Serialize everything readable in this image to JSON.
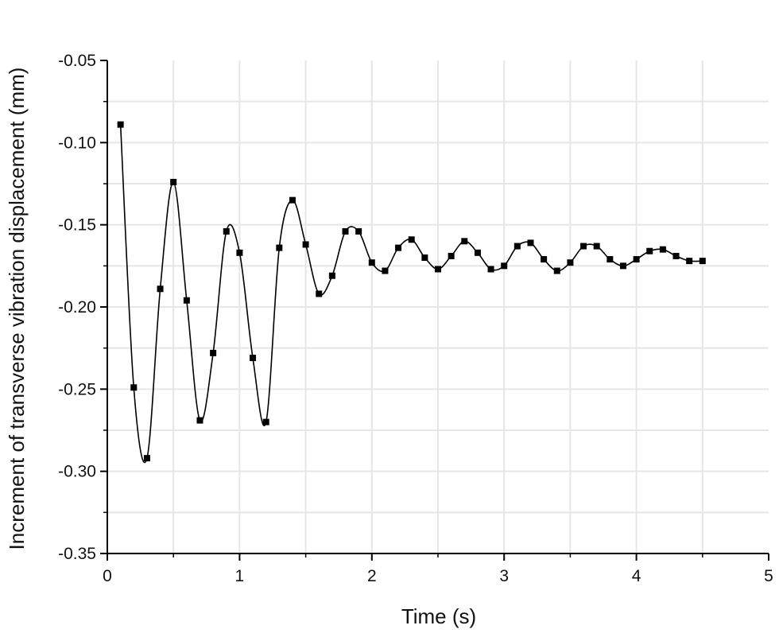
{
  "chart_data": {
    "type": "line",
    "title": "",
    "xlabel": "Time (s)",
    "ylabel": "Increment of transverse vibration displacement (mm)",
    "xlim": [
      0,
      5
    ],
    "ylim": [
      -0.35,
      -0.05
    ],
    "x_ticks": [
      0,
      1,
      2,
      3,
      4,
      5
    ],
    "x_tick_labels": [
      "0",
      "1",
      "2",
      "3",
      "4",
      "5"
    ],
    "y_ticks": [
      -0.35,
      -0.3,
      -0.25,
      -0.2,
      -0.15,
      -0.1,
      -0.05
    ],
    "y_tick_labels": [
      "-0.35",
      "-0.30",
      "-0.25",
      "-0.20",
      "-0.15",
      "-0.10",
      "-0.05"
    ],
    "grid": true,
    "legend": "none",
    "series": [
      {
        "marker": "square",
        "line": "smooth",
        "color": "#000000",
        "x": [
          0.1,
          0.2,
          0.3,
          0.4,
          0.5,
          0.6,
          0.7,
          0.8,
          0.9,
          1.0,
          1.1,
          1.2,
          1.3,
          1.4,
          1.5,
          1.6,
          1.7,
          1.8,
          1.9,
          2.0,
          2.1,
          2.2,
          2.3,
          2.4,
          2.5,
          2.6,
          2.7,
          2.8,
          2.9,
          3.0,
          3.1,
          3.2,
          3.3,
          3.4,
          3.5,
          3.6,
          3.7,
          3.8,
          3.9,
          4.0,
          4.1,
          4.2,
          4.3,
          4.4,
          4.5
        ],
        "y": [
          -0.089,
          -0.249,
          -0.292,
          -0.189,
          -0.124,
          -0.196,
          -0.269,
          -0.228,
          -0.154,
          -0.167,
          -0.231,
          -0.27,
          -0.164,
          -0.135,
          -0.162,
          -0.192,
          -0.181,
          -0.154,
          -0.154,
          -0.173,
          -0.178,
          -0.164,
          -0.159,
          -0.17,
          -0.177,
          -0.169,
          -0.16,
          -0.167,
          -0.177,
          -0.175,
          -0.163,
          -0.161,
          -0.171,
          -0.178,
          -0.173,
          -0.163,
          -0.163,
          -0.171,
          -0.175,
          -0.171,
          -0.166,
          -0.165,
          -0.169,
          -0.172,
          -0.172
        ]
      }
    ]
  }
}
